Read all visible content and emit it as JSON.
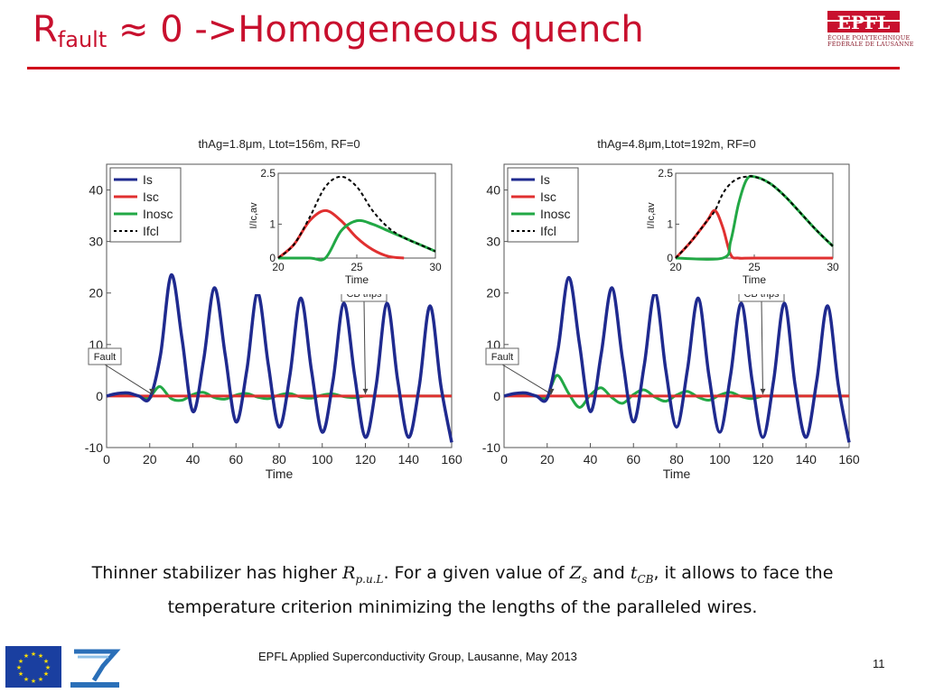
{
  "slide": {
    "title_main": "R",
    "title_sub": "fault",
    "title_rest": " ≈ 0 ->Homogeneous quench",
    "logo_text": "EPFL",
    "logo_line1": "ÉCOLE POLYTECHNIQUE",
    "logo_line2": "FÉDÉRALE DE LAUSANNE",
    "caption": {
      "t1": "Thinner stabilizer has higher ",
      "v1": "R",
      "v1_sub": "p.u.L",
      "t2": ". For a given value of ",
      "v2": "Z",
      "v2_sub": "s",
      "t3": " and ",
      "v3": "t",
      "v3_sub": "CB",
      "t4": ", it allows to face the temperature criterion minimizing the lengths of the paralleled wires."
    },
    "footer": "EPFL Applied Superconductivity Group, Lausanne, May 2013",
    "page_number": "11",
    "colors": {
      "title": "#c8102e",
      "rule": "#d0021b",
      "Is": "#1f2a8f",
      "Isc": "#e03030",
      "Inosc": "#22a845",
      "Ifcl": "#000000"
    }
  },
  "chart_data": [
    {
      "type": "line",
      "title": "thAg=1.8μm, Ltot=156m, RF=0",
      "xlabel": "Time",
      "ylabel": "I/Ic,av",
      "xlim": [
        0,
        160
      ],
      "ylim": [
        -10,
        45
      ],
      "xticks": [
        "0",
        "20",
        "40",
        "60",
        "80",
        "100",
        "120",
        "140",
        "160"
      ],
      "yticks": [
        "-10",
        "0",
        "10",
        "20",
        "30",
        "40"
      ],
      "legend": [
        "Is",
        "Isc",
        "Inosc",
        "Ifcl"
      ],
      "legend_position": "top-left",
      "annotations": [
        {
          "text": "Fault",
          "x": 21
        },
        {
          "text": "CB trips",
          "x": 120
        }
      ],
      "series": [
        {
          "name": "Is",
          "x": [
            0,
            5,
            10,
            15,
            20,
            25,
            30,
            35,
            40,
            45,
            50,
            55,
            60,
            65,
            70,
            75,
            80,
            85,
            90,
            95,
            100,
            105,
            110,
            115,
            120,
            125,
            130,
            135,
            140,
            145,
            150,
            155,
            160
          ],
          "y": [
            0,
            0.5,
            0.6,
            0,
            -0.4,
            8,
            23.5,
            11,
            -3,
            7,
            21,
            8,
            -5,
            5,
            20,
            6,
            -6,
            4,
            19,
            5,
            -7,
            3,
            18,
            4,
            -8,
            2,
            18,
            3,
            -8,
            2,
            17.5,
            2,
            -9
          ]
        },
        {
          "name": "Isc",
          "x": [
            0,
            10,
            20,
            25,
            120,
            160
          ],
          "y": [
            0,
            0,
            0,
            0,
            0,
            0
          ]
        },
        {
          "name": "Inosc",
          "x": [
            0,
            5,
            10,
            15,
            20,
            22,
            25,
            30,
            35,
            40,
            45,
            50,
            55,
            60,
            65,
            70,
            75,
            80,
            85,
            90,
            95,
            100,
            105,
            110,
            115,
            120,
            125,
            130,
            160
          ],
          "y": [
            0,
            0.4,
            0.5,
            0,
            -0.4,
            0.8,
            1.8,
            -0.5,
            -0.8,
            0.3,
            0.7,
            -0.3,
            -0.6,
            0.2,
            0.5,
            -0.2,
            -0.5,
            0.2,
            0.5,
            -0.2,
            -0.4,
            0.2,
            0.4,
            -0.1,
            -0.3,
            0,
            0,
            0,
            0
          ]
        }
      ],
      "inset": {
        "xlabel": "Time",
        "ylabel": "I/Ic,av",
        "xlim": [
          20,
          30
        ],
        "ylim": [
          0,
          2.5
        ],
        "xticks": [
          "20",
          "25",
          "30"
        ],
        "yticks": [
          "0",
          "1",
          "2.5"
        ],
        "series": [
          {
            "name": "Isc",
            "x": [
              20,
              21,
              22,
              23,
              24,
              25,
              26,
              27,
              28
            ],
            "y": [
              0,
              0.4,
              1.1,
              1.4,
              1.1,
              0.6,
              0.25,
              0.05,
              0
            ]
          },
          {
            "name": "Inosc",
            "x": [
              20,
              22,
              23,
              24,
              25,
              26,
              27,
              28,
              29,
              30
            ],
            "y": [
              0,
              0,
              0,
              0.8,
              1.1,
              1.0,
              0.8,
              0.6,
              0.4,
              0.2
            ]
          },
          {
            "name": "Ifcl",
            "x": [
              20,
              21,
              22,
              23,
              24,
              25,
              26,
              27,
              28,
              29,
              30
            ],
            "y": [
              0,
              0.4,
              1.2,
              2.1,
              2.4,
              2.1,
              1.4,
              0.9,
              0.6,
              0.4,
              0.2
            ]
          }
        ]
      }
    },
    {
      "type": "line",
      "title": "thAg=4.8μm,Ltot=192m, RF=0",
      "xlabel": "Time",
      "ylabel": "I/Ic,av",
      "xlim": [
        0,
        160
      ],
      "ylim": [
        -10,
        45
      ],
      "xticks": [
        "0",
        "20",
        "40",
        "60",
        "80",
        "100",
        "120",
        "140",
        "160"
      ],
      "yticks": [
        "-10",
        "0",
        "10",
        "20",
        "30",
        "40"
      ],
      "legend": [
        "Is",
        "Isc",
        "Inosc",
        "Ifcl"
      ],
      "legend_position": "top-left",
      "annotations": [
        {
          "text": "Fault",
          "x": 22
        },
        {
          "text": "CB trips",
          "x": 120
        }
      ],
      "series": [
        {
          "name": "Is",
          "x": [
            0,
            5,
            10,
            15,
            20,
            25,
            30,
            35,
            40,
            45,
            50,
            55,
            60,
            65,
            70,
            75,
            80,
            85,
            90,
            95,
            100,
            105,
            110,
            115,
            120,
            125,
            130,
            135,
            140,
            145,
            150,
            155,
            160
          ],
          "y": [
            0,
            0.5,
            0.6,
            0,
            -0.4,
            9,
            23,
            10,
            -3,
            8,
            21,
            7,
            -5,
            6,
            20,
            5,
            -6,
            5,
            19,
            4,
            -7,
            4,
            18,
            3,
            -8,
            3,
            18,
            2,
            -8,
            3,
            17.5,
            2,
            -9
          ]
        },
        {
          "name": "Isc",
          "x": [
            0,
            10,
            20,
            25,
            120,
            160
          ],
          "y": [
            0,
            0,
            0,
            0,
            0,
            0
          ]
        },
        {
          "name": "Inosc",
          "x": [
            0,
            5,
            10,
            15,
            20,
            22,
            25,
            30,
            35,
            40,
            45,
            50,
            55,
            60,
            65,
            70,
            75,
            80,
            85,
            90,
            95,
            100,
            105,
            110,
            115,
            120,
            125,
            130,
            160
          ],
          "y": [
            0,
            0.4,
            0.5,
            0,
            -0.4,
            2,
            4,
            0.5,
            -2.2,
            0.2,
            1.6,
            -0.3,
            -1.4,
            0.3,
            1.2,
            -0.2,
            -1.0,
            0.2,
            0.9,
            -0.2,
            -0.8,
            0.2,
            0.7,
            -0.1,
            -0.5,
            0,
            0,
            0,
            0
          ]
        }
      ],
      "inset": {
        "xlabel": "Time",
        "ylabel": "I/Ic,av",
        "xlim": [
          20,
          30
        ],
        "ylim": [
          0,
          2.5
        ],
        "xticks": [
          "20",
          "25",
          "30"
        ],
        "yticks": [
          "0",
          "1",
          "2.5"
        ],
        "series": [
          {
            "name": "Isc",
            "x": [
              20,
              21,
              22,
              22.5,
              23,
              23.5,
              24,
              25,
              30
            ],
            "y": [
              0,
              0.5,
              1.1,
              1.4,
              0.9,
              0.1,
              0,
              0,
              0
            ]
          },
          {
            "name": "Inosc",
            "x": [
              20,
              23,
              23.5,
              24,
              24.5,
              25,
              26,
              27,
              28,
              29,
              30
            ],
            "y": [
              0,
              0,
              0.5,
              1.6,
              2.3,
              2.4,
              2.2,
              1.8,
              1.3,
              0.8,
              0.35
            ]
          },
          {
            "name": "Ifcl",
            "x": [
              20,
              21,
              22,
              22.5,
              23,
              23.5,
              24,
              24.5,
              25,
              26,
              27,
              28,
              29,
              30
            ],
            "y": [
              0,
              0.5,
              1.1,
              1.4,
              1.9,
              2.2,
              2.35,
              2.4,
              2.4,
              2.2,
              1.8,
              1.3,
              0.8,
              0.35
            ]
          }
        ]
      }
    }
  ]
}
